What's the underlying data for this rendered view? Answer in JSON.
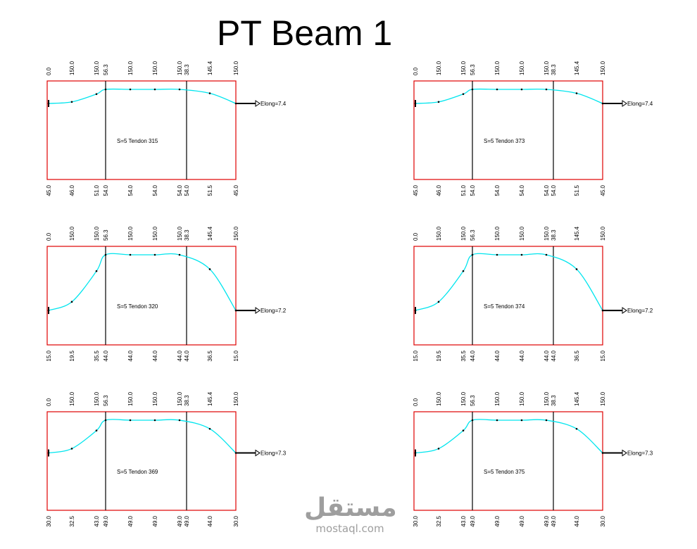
{
  "title": "PT Beam 1",
  "colors": {
    "frame": "#e00000",
    "profile": "#00e5ee",
    "line": "#000000",
    "text": "#000000",
    "watermark": "#9e9e9e"
  },
  "stations": [
    0,
    1,
    2,
    3,
    4,
    5,
    6,
    7,
    8
  ],
  "panels": [
    {
      "tendon_label": "S=5 Tendon 315",
      "elongation": "Elong=7.4",
      "top_labels": [
        "0.0",
        "150.0",
        "150.0",
        "56.3",
        "150.0",
        "150.0",
        "150.0",
        "38.3",
        "145.4",
        "150.0"
      ],
      "bottom_labels": [
        "45.0",
        "46.0",
        "51.0",
        "54.0",
        "54.0",
        "54.0",
        "54.0",
        "54.0",
        "51.5",
        "45.0"
      ],
      "profile_heights": [
        45.0,
        46.0,
        51.0,
        54.0,
        54.0,
        54.0,
        54.0,
        51.5,
        45.0
      ]
    },
    {
      "tendon_label": "S=5 Tendon 373",
      "elongation": "Elong=7.4",
      "top_labels": [
        "0.0",
        "150.0",
        "150.0",
        "56.3",
        "150.0",
        "150.0",
        "150.0",
        "38.3",
        "145.4",
        "150.0"
      ],
      "bottom_labels": [
        "45.0",
        "46.0",
        "51.0",
        "54.0",
        "54.0",
        "54.0",
        "54.0",
        "54.0",
        "51.5",
        "45.0"
      ],
      "profile_heights": [
        45.0,
        46.0,
        51.0,
        54.0,
        54.0,
        54.0,
        54.0,
        51.5,
        45.0
      ]
    },
    {
      "tendon_label": "S=5 Tendon 320",
      "elongation": "Elong=7.2",
      "top_labels": [
        "0.0",
        "150.0",
        "150.0",
        "56.3",
        "150.0",
        "150.0",
        "150.0",
        "38.3",
        "145.4",
        "150.0"
      ],
      "bottom_labels": [
        "15.0",
        "19.5",
        "35.5",
        "44.0",
        "44.0",
        "44.0",
        "44.0",
        "44.0",
        "36.5",
        "15.0"
      ],
      "profile_heights": [
        15.0,
        19.5,
        35.5,
        44.0,
        44.0,
        44.0,
        44.0,
        36.5,
        15.0
      ]
    },
    {
      "tendon_label": "S=5 Tendon 374",
      "elongation": "Elong=7.2",
      "top_labels": [
        "0.0",
        "150.0",
        "150.0",
        "56.3",
        "150.0",
        "150.0",
        "150.0",
        "38.3",
        "145.4",
        "150.0"
      ],
      "bottom_labels": [
        "15.0",
        "19.5",
        "35.5",
        "44.0",
        "44.0",
        "44.0",
        "44.0",
        "44.0",
        "36.5",
        "15.0"
      ],
      "profile_heights": [
        15.0,
        19.5,
        35.5,
        44.0,
        44.0,
        44.0,
        44.0,
        36.5,
        15.0
      ]
    },
    {
      "tendon_label": "S=5 Tendon 369",
      "elongation": "Elong=7.3",
      "top_labels": [
        "0.0",
        "150.0",
        "150.0",
        "56.3",
        "150.0",
        "150.0",
        "150.0",
        "38.3",
        "145.4",
        "150.0"
      ],
      "bottom_labels": [
        "30.0",
        "32.5",
        "43.0",
        "49.0",
        "49.0",
        "49.0",
        "49.0",
        "49.0",
        "44.0",
        "30.0"
      ],
      "profile_heights": [
        30.0,
        32.5,
        43.0,
        49.0,
        49.0,
        49.0,
        49.0,
        44.0,
        30.0
      ]
    },
    {
      "tendon_label": "S=5 Tendon 375",
      "elongation": "Elong=7.3",
      "top_labels": [
        "0.0",
        "150.0",
        "150.0",
        "56.3",
        "150.0",
        "150.0",
        "150.0",
        "38.3",
        "145.4",
        "150.0"
      ],
      "bottom_labels": [
        "30.0",
        "32.5",
        "43.0",
        "49.0",
        "49.0",
        "49.0",
        "49.0",
        "49.0",
        "44.0",
        "30.0"
      ],
      "profile_heights": [
        30.0,
        32.5,
        43.0,
        49.0,
        49.0,
        49.0,
        49.0,
        44.0,
        30.0
      ]
    }
  ],
  "watermark": {
    "arabic": "مستقل",
    "latin": "mostaql.com"
  }
}
